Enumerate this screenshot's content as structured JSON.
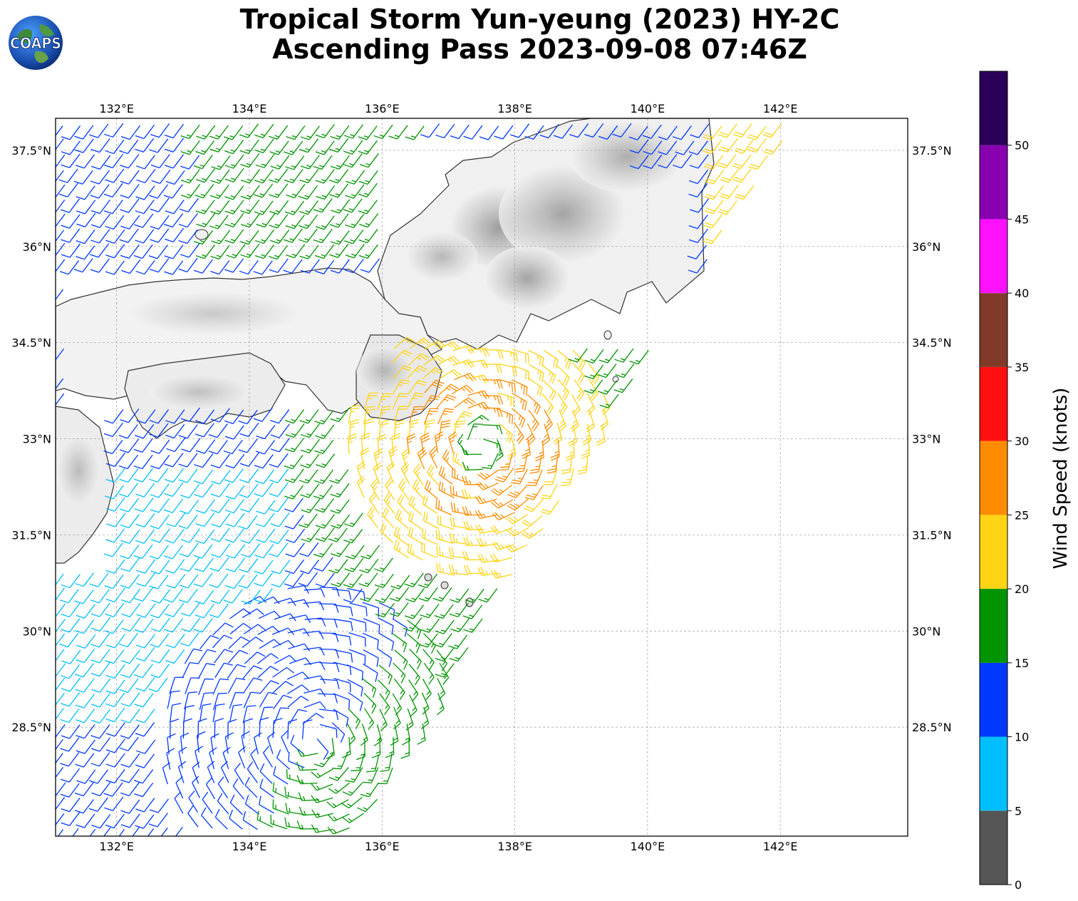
{
  "title": {
    "line1": "Tropical Storm Yun-yeung (2023) HY-2C",
    "line2": "Ascending Pass 2023-09-08 07:46Z"
  },
  "logo": {
    "text": "COAPS"
  },
  "map": {
    "lon_range": [
      131.08,
      143.92
    ],
    "lat_range": [
      26.8,
      38.0
    ],
    "lon_ticks": [
      "132°E",
      "134°E",
      "136°E",
      "138°E",
      "140°E",
      "142°E"
    ],
    "lat_ticks": [
      "37.5°N",
      "36°N",
      "34.5°N",
      "33°N",
      "31.5°N",
      "30°N",
      "28.5°N"
    ],
    "storm_center": {
      "lon": 137.5,
      "lat": 32.9
    },
    "secondary_circulation": {
      "lon": 135.0,
      "lat": 28.3
    },
    "grid": true,
    "terrain_shading": "grayscale"
  },
  "colorbar": {
    "label": "Wind Speed (knots)",
    "ticks": [
      "0",
      "5",
      "10",
      "15",
      "20",
      "25",
      "30",
      "35",
      "40",
      "45",
      "50"
    ],
    "bins": [
      {
        "min": 0,
        "max": 5,
        "color": "#555555"
      },
      {
        "min": 5,
        "max": 10,
        "color": "#00bfff"
      },
      {
        "min": 10,
        "max": 15,
        "color": "#0038ff"
      },
      {
        "min": 15,
        "max": 20,
        "color": "#009400"
      },
      {
        "min": 20,
        "max": 25,
        "color": "#ffd414"
      },
      {
        "min": 25,
        "max": 30,
        "color": "#ff8c00"
      },
      {
        "min": 30,
        "max": 35,
        "color": "#ff1010"
      },
      {
        "min": 35,
        "max": 40,
        "color": "#803a28"
      },
      {
        "min": 40,
        "max": 45,
        "color": "#ff10ff"
      },
      {
        "min": 45,
        "max": 50,
        "color": "#8800b0"
      },
      {
        "min": 50,
        "max": 55,
        "color": "#2a0058"
      }
    ]
  }
}
